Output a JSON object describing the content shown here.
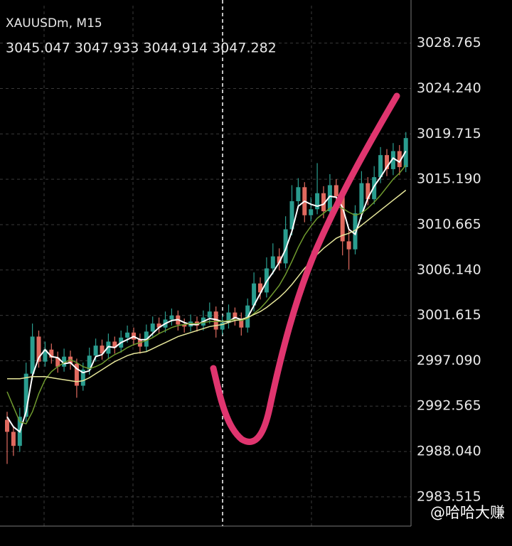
{
  "chart_data": {
    "type": "candlestick",
    "title": "XAUUSDm, M15",
    "subtitle": "3045.047 3047.933 3044.914 3047.282",
    "annotation": "@哈哈大赚",
    "up_color": "#2a9d8f",
    "down_color": "#e06a5f",
    "ylim": [
      2980.6,
      3032.5
    ],
    "yticks": [
      3028.765,
      {
        "value": 3024.24,
        "label": "3024.240"
      },
      3019.715,
      {
        "value": 3015.19,
        "label": "3015.190"
      },
      3010.665,
      {
        "value": 3006.14,
        "label": "3006.140"
      },
      3001.615,
      {
        "value": 2997.09,
        "label": "2997.090"
      },
      2992.565,
      {
        "value": 2988.04,
        "label": "2988.040"
      },
      2983.515
    ],
    "grid": true,
    "candles": {
      "open": [
        2991.2,
        2990.0,
        2988.6,
        2991.5,
        2995.8,
        2999.5,
        2997.0,
        2998.2,
        2997.4,
        2996.5,
        2997.5,
        2996.8,
        2994.6,
        2996.2,
        2997.6,
        2998.6,
        2997.8,
        2999.0,
        2998.4,
        2999.4,
        2999.9,
        2999.2,
        2998.5,
        3000.0,
        3000.8,
        3000.4,
        3001.2,
        3001.6,
        3000.7,
        3000.5,
        3001.0,
        3000.6,
        3001.4,
        3002.0,
        3000.2,
        3000.9,
        3001.9,
        3001.3,
        3000.4,
        3002.6,
        3004.8,
        3003.9,
        3006.3,
        3007.5,
        3006.8,
        3010.2,
        3013.0,
        3014.4,
        3011.6,
        3012.2,
        3013.8,
        3012.0,
        3014.6,
        3013.5,
        3009.0,
        3008.2,
        3011.8,
        3014.8,
        3013.2,
        3015.4,
        3017.6,
        3016.2,
        3018.0,
        3016.4
      ],
      "high": [
        2992.0,
        2990.6,
        2992.4,
        2996.9,
        3000.8,
        3000.1,
        2999.0,
        2998.8,
        2998.0,
        2998.3,
        2998.1,
        2997.3,
        2996.9,
        2998.4,
        2999.3,
        2999.2,
        2999.8,
        2999.5,
        3000.1,
        3000.6,
        3000.4,
        2999.8,
        3000.7,
        3001.5,
        3001.4,
        3002.0,
        3002.3,
        3002.1,
        3001.3,
        3001.7,
        3001.5,
        3002.1,
        3002.9,
        3002.5,
        3001.6,
        3002.7,
        3002.4,
        3001.9,
        3003.3,
        3005.9,
        3005.4,
        3007.4,
        3008.8,
        3008.3,
        3011.5,
        3014.6,
        3015.3,
        3014.9,
        3013.4,
        3016.8,
        3014.5,
        3015.7,
        3015.2,
        3014.0,
        3010.1,
        3012.6,
        3016.0,
        3015.4,
        3016.5,
        3018.4,
        3018.2,
        3018.8,
        3018.6,
        3019.9
      ],
      "low": [
        2986.8,
        2987.6,
        2988.0,
        2991.0,
        2995.2,
        2996.4,
        2996.5,
        2996.8,
        2995.9,
        2996.0,
        2996.2,
        2993.4,
        2994.1,
        2995.7,
        2997.0,
        2997.2,
        2997.3,
        2997.8,
        2997.9,
        2998.9,
        2998.6,
        2997.8,
        2998.0,
        2999.5,
        2999.8,
        2999.9,
        3000.6,
        3000.1,
        2999.9,
        3000.0,
        3000.0,
        3000.1,
        3000.8,
        2999.4,
        2999.7,
        3000.3,
        3000.6,
        2999.6,
        2999.9,
        3002.0,
        3003.2,
        3003.4,
        3005.7,
        3006.1,
        3006.3,
        3009.6,
        3012.3,
        3010.9,
        3011.0,
        3011.7,
        3011.3,
        3011.5,
        3012.8,
        3007.6,
        3006.2,
        3007.7,
        3011.2,
        3012.6,
        3012.7,
        3014.8,
        3015.5,
        3015.6,
        3015.6,
        3015.9
      ],
      "close": [
        2990.0,
        2988.6,
        2991.5,
        2995.8,
        2999.5,
        2997.0,
        2998.2,
        2997.4,
        2996.5,
        2997.5,
        2996.8,
        2994.6,
        2996.2,
        2997.6,
        2998.6,
        2997.8,
        2999.0,
        2998.4,
        2999.4,
        2999.9,
        2999.2,
        2998.5,
        3000.0,
        3000.8,
        3000.4,
        3001.2,
        3001.6,
        3000.7,
        3000.5,
        3001.0,
        3000.6,
        3001.4,
        3002.0,
        3000.2,
        3000.9,
        3001.9,
        3001.3,
        3000.4,
        3002.6,
        3004.8,
        3003.9,
        3006.3,
        3007.5,
        3006.8,
        3010.2,
        3013.0,
        3014.4,
        3011.6,
        3012.2,
        3013.8,
        3012.0,
        3014.6,
        3013.5,
        3009.0,
        3008.2,
        3011.8,
        3014.8,
        3013.2,
        3015.4,
        3017.6,
        3016.2,
        3018.0,
        3016.4,
        3019.3
      ]
    },
    "series": [
      {
        "color": "#ffffff",
        "values": [
          2991.5,
          2990.5,
          2990.0,
          2992.0,
          2995.6,
          2997.4,
          2998.2,
          2997.5,
          2997.4,
          2996.8,
          2996.9,
          2996.3,
          2995.9,
          2996.1,
          2997.5,
          2997.7,
          2998.5,
          2998.4,
          2998.9,
          2999.2,
          2999.5,
          2999.2,
          2999.2,
          2999.8,
          3000.4,
          3000.8,
          3001.1,
          3001.2,
          3000.9,
          3000.7,
          3000.7,
          3001.0,
          3001.3,
          3001.2,
          3001.0,
          3001.0,
          3001.4,
          3001.2,
          3001.4,
          3002.6,
          3003.8,
          3005.0,
          3005.9,
          3006.9,
          3008.2,
          3010.0,
          3012.5,
          3013.0,
          3012.7,
          3012.5,
          3012.7,
          3013.5,
          3013.4,
          3012.4,
          3010.2,
          3009.7,
          3011.6,
          3013.3,
          3014.5,
          3015.4,
          3016.4,
          3017.3,
          3016.9,
          3018.0
        ]
      },
      {
        "color": "#6f9a2e",
        "values": [
          2994.0,
          2992.5,
          2991.0,
          2990.8,
          2992.0,
          2993.8,
          2995.2,
          2996.0,
          2996.5,
          2996.9,
          2997.2,
          2996.9,
          2996.5,
          2996.3,
          2996.5,
          2996.8,
          2997.3,
          2997.7,
          2998.0,
          2998.4,
          2998.7,
          2998.9,
          2999.1,
          2999.4,
          2999.8,
          3000.1,
          3000.4,
          3000.6,
          3000.7,
          3000.8,
          3000.8,
          3000.9,
          3001.0,
          3001.0,
          3001.0,
          3001.1,
          3001.2,
          3001.1,
          3001.3,
          3001.8,
          3002.3,
          3003.0,
          3003.8,
          3004.6,
          3005.7,
          3007.0,
          3008.4,
          3009.6,
          3010.5,
          3011.3,
          3011.8,
          3012.3,
          3012.5,
          3012.3,
          3011.9,
          3011.6,
          3011.8,
          3012.3,
          3012.9,
          3013.6,
          3014.4,
          3015.2,
          3015.8,
          3016.6
        ]
      },
      {
        "color": "#e6e69a",
        "values": [
          2995.3,
          2995.3,
          2995.3,
          2995.4,
          2995.5,
          2995.5,
          2995.5,
          2995.4,
          2995.3,
          2995.2,
          2995.1,
          2995.0,
          2995.1,
          2995.4,
          2995.8,
          2996.2,
          2996.6,
          2997.0,
          2997.3,
          2997.6,
          2997.8,
          2997.9,
          2998.0,
          2998.3,
          2998.6,
          2998.9,
          2999.2,
          2999.5,
          2999.7,
          2999.9,
          3000.1,
          3000.3,
          3000.5,
          3000.6,
          3000.7,
          3000.9,
          3001.1,
          3001.2,
          3001.4,
          3001.7,
          3002.0,
          3002.4,
          3002.9,
          3003.4,
          3004.0,
          3004.7,
          3005.5,
          3006.3,
          3007.0,
          3007.7,
          3008.3,
          3008.8,
          3009.3,
          3009.6,
          3009.8,
          3010.1,
          3010.6,
          3011.1,
          3011.6,
          3012.1,
          3012.6,
          3013.1,
          3013.6,
          3014.1
        ]
      }
    ]
  }
}
